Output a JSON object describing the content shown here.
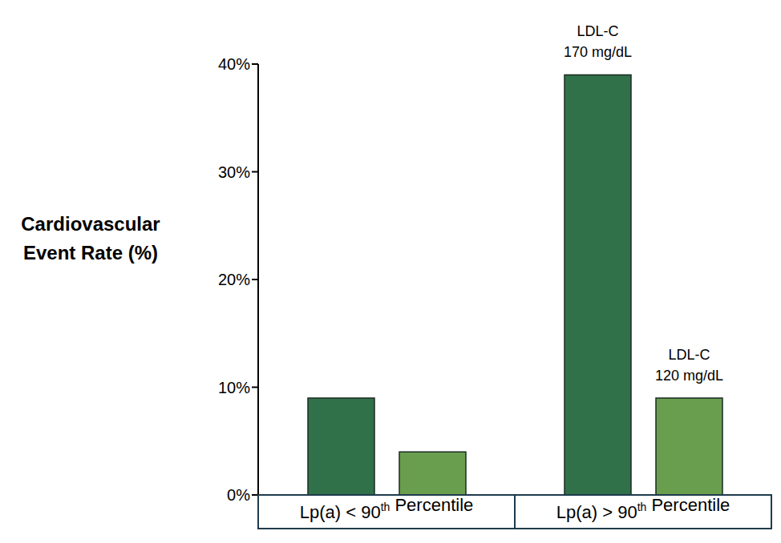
{
  "chart_data": {
    "type": "bar",
    "y_label": "Cardiovascular Event Rate (%)",
    "categories": [
      "Lp(a) < 90th Percentile",
      "Lp(a) > 90th Percentile"
    ],
    "series": [
      {
        "name": "LDL-C 170 mg/dL",
        "color": "#31714a",
        "values": [
          9,
          39
        ]
      },
      {
        "name": "LDL-C 120 mg/dL",
        "color": "#6a9e4f",
        "values": [
          4,
          9
        ]
      }
    ],
    "ylim": [
      0,
      40
    ],
    "yticks": [
      {
        "value": 0,
        "label": "0%"
      },
      {
        "value": 10,
        "label": "10%"
      },
      {
        "value": 20,
        "label": "20%"
      },
      {
        "value": 30,
        "label": "30%"
      },
      {
        "value": 40,
        "label": "40%"
      }
    ],
    "grid": false
  }
}
